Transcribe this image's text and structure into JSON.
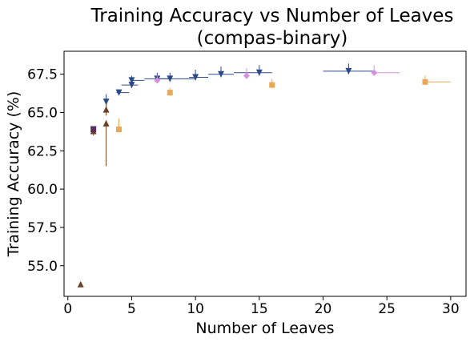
{
  "chart_data": {
    "type": "scatter",
    "title": "Training Accuracy vs Number of Leaves",
    "subtitle": "(compas-binary)",
    "xlabel": "Number of Leaves",
    "ylabel": "Training Accuracy (%)",
    "xlim": [
      -0.3,
      31.2
    ],
    "ylim": [
      53.0,
      69.0
    ],
    "xticks": [
      0,
      5,
      10,
      15,
      20,
      25,
      30
    ],
    "yticks": [
      55.0,
      57.5,
      60.0,
      62.5,
      65.0,
      67.5
    ],
    "ytick_labels": [
      "55.0",
      "57.5",
      "60.0",
      "62.5",
      "65.0",
      "67.5"
    ],
    "grid": false,
    "series": [
      {
        "marker": "triangle-down",
        "color": "#2c4a8a",
        "points": [
          {
            "x": 2,
            "y": 63.9,
            "xerr": [
              2,
              2
            ],
            "yerr": [
              63.7,
              64.0
            ]
          },
          {
            "x": 3,
            "y": 65.7,
            "xerr": [
              3,
              3
            ],
            "yerr": [
              65.3,
              66.2
            ]
          },
          {
            "x": 4,
            "y": 66.3,
            "xerr": [
              3.8,
              4.8
            ],
            "yerr": [
              66.2,
              66.5
            ]
          },
          {
            "x": 5,
            "y": 66.8,
            "xerr": [
              4.2,
              5.5
            ],
            "yerr": [
              66.6,
              67.3
            ]
          },
          {
            "x": 5,
            "y": 67.1,
            "xerr": [
              5,
              6
            ],
            "yerr": [
              66.9,
              67.4
            ]
          },
          {
            "x": 7,
            "y": 67.2,
            "xerr": [
              6,
              8
            ],
            "yerr": [
              67.0,
              67.6
            ]
          },
          {
            "x": 8,
            "y": 67.2,
            "xerr": [
              7,
              10
            ],
            "yerr": [
              67.0,
              67.6
            ]
          },
          {
            "x": 10,
            "y": 67.3,
            "xerr": [
              9.5,
              11
            ],
            "yerr": [
              67.1,
              67.8
            ]
          },
          {
            "x": 12,
            "y": 67.5,
            "xerr": [
              11,
              13
            ],
            "yerr": [
              67.3,
              68.0
            ]
          },
          {
            "x": 15,
            "y": 67.6,
            "xerr": [
              13,
              16
            ],
            "yerr": [
              67.4,
              68.1
            ]
          },
          {
            "x": 22,
            "y": 67.7,
            "xerr": [
              20,
              24
            ],
            "yerr": [
              67.5,
              68.2
            ]
          }
        ]
      },
      {
        "marker": "triangle-up",
        "color": "#6b4226",
        "points": [
          {
            "x": 1,
            "y": 53.8,
            "xerr": [
              1,
              1
            ],
            "yerr": [
              53.7,
              53.9
            ]
          },
          {
            "x": 2,
            "y": 63.8,
            "xerr": [
              2,
              2
            ],
            "yerr": [
              63.5,
              64.0
            ]
          },
          {
            "x": 3,
            "y": 64.3,
            "xerr": [
              3,
              3
            ],
            "yerr": [
              61.5,
              64.5
            ]
          },
          {
            "x": 3,
            "y": 65.2,
            "xerr": [
              3,
              3
            ],
            "yerr": [
              64.8,
              65.6
            ]
          }
        ]
      },
      {
        "marker": "square",
        "color": "#e8a858",
        "points": [
          {
            "x": 4,
            "y": 63.9,
            "xerr": [
              4,
              4
            ],
            "yerr": [
              63.7,
              64.6
            ]
          },
          {
            "x": 8,
            "y": 66.3,
            "xerr": [
              8,
              8
            ],
            "yerr": [
              66.1,
              66.6
            ]
          },
          {
            "x": 16,
            "y": 66.8,
            "xerr": [
              16,
              16
            ],
            "yerr": [
              66.6,
              67.2
            ]
          },
          {
            "x": 28,
            "y": 67.0,
            "xerr": [
              28,
              30
            ],
            "yerr": [
              66.8,
              67.4
            ]
          }
        ]
      },
      {
        "marker": "diamond",
        "color": "#d98ee0",
        "points": [
          {
            "x": 7,
            "y": 67.1,
            "xerr": [
              7,
              7
            ],
            "yerr": [
              66.9,
              67.4
            ]
          },
          {
            "x": 14,
            "y": 67.4,
            "xerr": [
              14,
              14
            ],
            "yerr": [
              67.2,
              67.9
            ]
          },
          {
            "x": 24,
            "y": 67.6,
            "xerr": [
              24,
              26
            ],
            "yerr": [
              67.4,
              68.1
            ]
          }
        ]
      },
      {
        "marker": "square",
        "color": "#5b2e5e",
        "points": [
          {
            "x": 2,
            "y": 63.9,
            "xerr": [
              2,
              2
            ],
            "yerr": [
              63.8,
              64.0
            ]
          }
        ]
      }
    ]
  }
}
